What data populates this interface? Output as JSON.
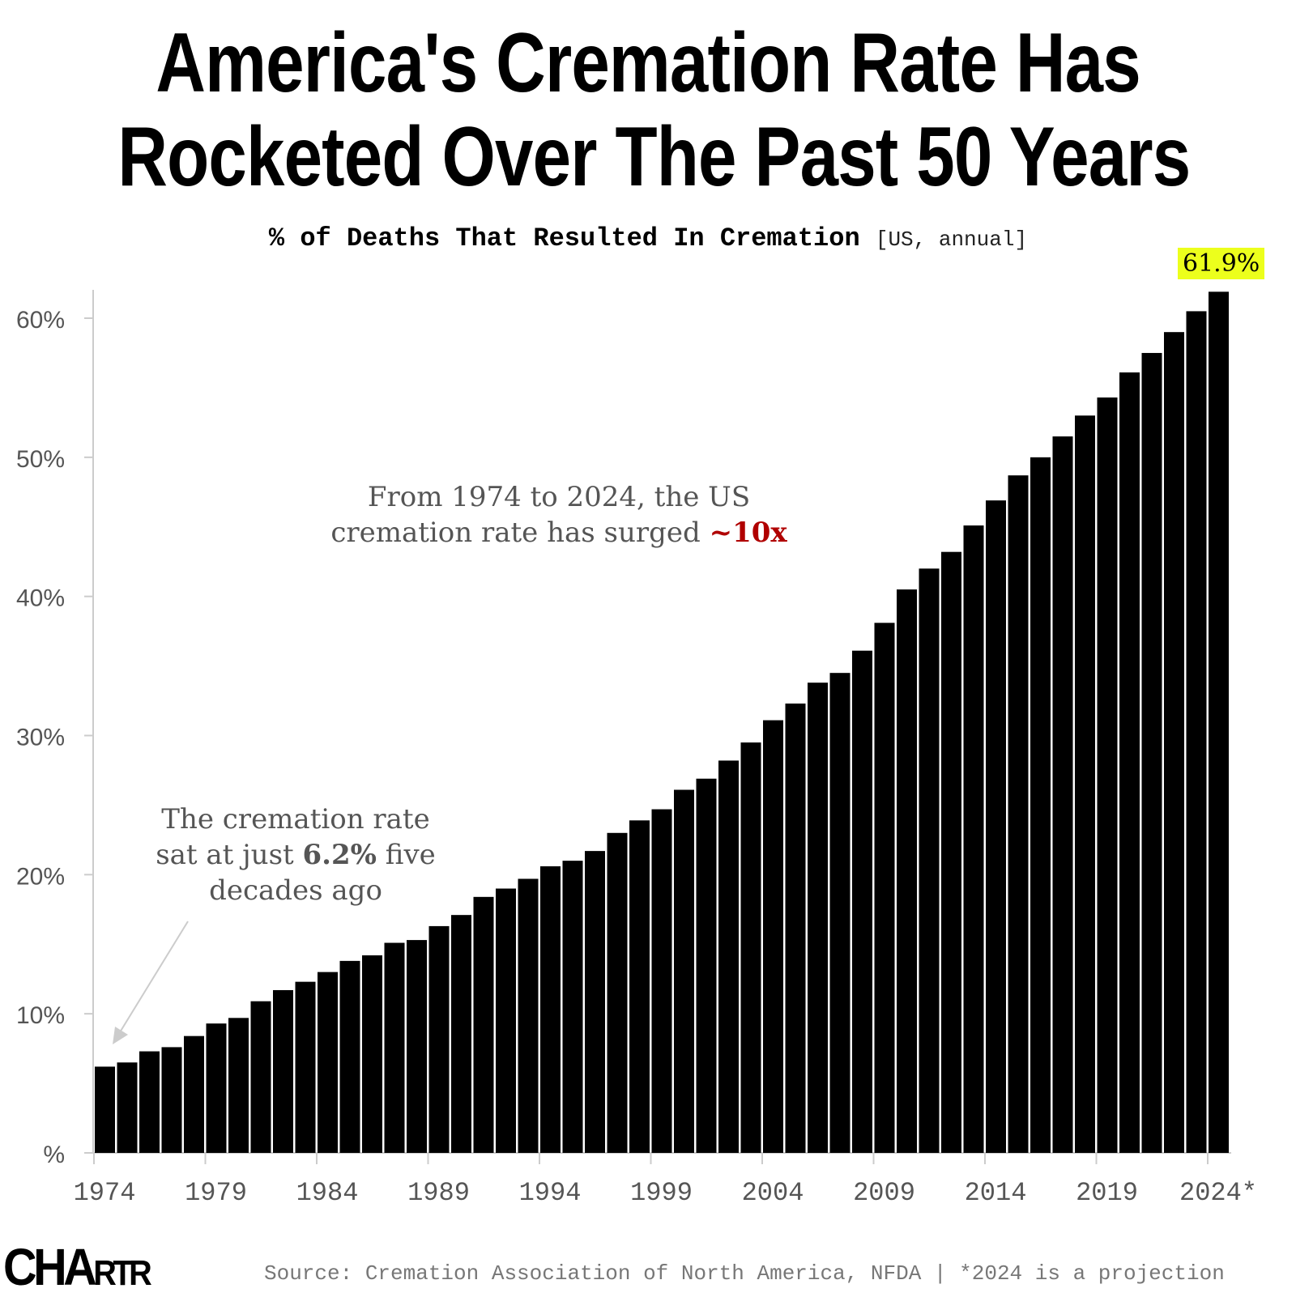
{
  "title_line1": "America's Cremation Rate Has",
  "title_line2": "Rocketed Over The Past 50 Years",
  "subtitle_main": "% of Deaths That Resulted In Cremation",
  "subtitle_qualifier": "[US, annual]",
  "annotations": {
    "main_prefix": "From 1974 to 2024,  the US cremation rate has surged ",
    "main_highlight": "~10x",
    "left_prefix": "The cremation rate sat at just ",
    "left_value": "6.2%",
    "left_suffix": " five decades ago",
    "last_value_label": "61.9%"
  },
  "source": "Source: Cremation Association of North America, NFDA | *2024 is a projection",
  "logo": "CHARTR",
  "colors": {
    "bars": "#000000",
    "highlight_label": "#ecff1c",
    "accent": "#b00000"
  },
  "chart_data": {
    "type": "bar",
    "title": "America's Cremation Rate Has Rocketed Over The Past 50 Years",
    "subtitle": "% of Deaths That Resulted In Cremation [US, annual]",
    "xlabel": "",
    "ylabel": "",
    "ylim": [
      0,
      62
    ],
    "grid": false,
    "y_ticks": [
      0,
      10,
      20,
      30,
      40,
      50,
      60
    ],
    "y_tick_labels": [
      "%",
      "10%",
      "20%",
      "30%",
      "40%",
      "50%",
      "60%"
    ],
    "x_tick_labels": [
      "1974",
      "1979",
      "1984",
      "1989",
      "1994",
      "1999",
      "2004",
      "2009",
      "2014",
      "2019",
      "2024*"
    ],
    "categories": [
      1974,
      1975,
      1976,
      1977,
      1978,
      1979,
      1980,
      1981,
      1982,
      1983,
      1984,
      1985,
      1986,
      1987,
      1988,
      1989,
      1990,
      1991,
      1992,
      1993,
      1994,
      1995,
      1996,
      1997,
      1998,
      1999,
      2000,
      2001,
      2002,
      2003,
      2004,
      2005,
      2006,
      2007,
      2008,
      2009,
      2010,
      2011,
      2012,
      2013,
      2014,
      2015,
      2016,
      2017,
      2018,
      2019,
      2020,
      2021,
      2022,
      2023,
      2024
    ],
    "values": [
      6.2,
      6.5,
      7.3,
      7.6,
      8.4,
      9.3,
      9.7,
      10.9,
      11.7,
      12.3,
      13.0,
      13.8,
      14.2,
      15.1,
      15.3,
      16.3,
      17.1,
      18.4,
      19.0,
      19.7,
      20.6,
      21.0,
      21.7,
      23.0,
      23.9,
      24.7,
      26.1,
      26.9,
      28.2,
      29.5,
      31.1,
      32.3,
      33.8,
      34.5,
      36.1,
      38.1,
      40.5,
      42.0,
      43.2,
      45.1,
      46.9,
      48.7,
      50.0,
      51.5,
      53.0,
      54.3,
      56.1,
      57.5,
      59.0,
      60.5,
      61.9
    ]
  }
}
